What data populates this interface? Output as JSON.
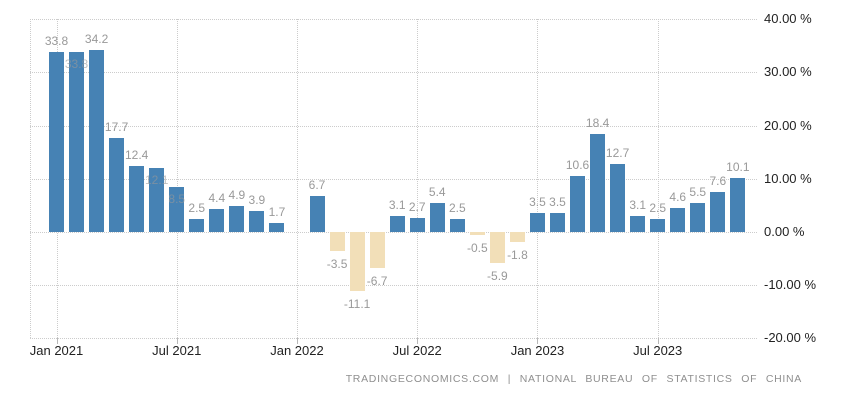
{
  "footer": {
    "credit": "TRADINGECONOMICS.COM | NATIONAL BUREAU OF STATISTICS OF CHINA"
  },
  "chart_data": {
    "type": "bar",
    "unit": "%",
    "ylim": [
      -20,
      40
    ],
    "grid": "dotted",
    "legend_position": "none",
    "colors": {
      "positive": "#4682B4",
      "negative": "#F2DFB8",
      "grid": "#CCCCCC",
      "value_label": "#999999",
      "axis_label": "#222222"
    },
    "y_axis": {
      "side": "right",
      "ticks": [
        {
          "value": 40,
          "label": "40.00 %"
        },
        {
          "value": 30,
          "label": "30.00 %"
        },
        {
          "value": 20,
          "label": "20.00 %"
        },
        {
          "value": 10,
          "label": "10.00 %"
        },
        {
          "value": 0,
          "label": "0.00 %"
        },
        {
          "value": -10,
          "label": "-10.00 %"
        },
        {
          "value": -20,
          "label": "-20.00 %"
        }
      ]
    },
    "x_axis": {
      "ticks": [
        {
          "label": "Jan 2021",
          "month_index": 0
        },
        {
          "label": "Jul 2021",
          "month_index": 6
        },
        {
          "label": "Jan 2022",
          "month_index": 12
        },
        {
          "label": "Jul 2022",
          "month_index": 18
        },
        {
          "label": "Jan 2023",
          "month_index": 24
        },
        {
          "label": "Jul 2023",
          "month_index": 30
        }
      ]
    },
    "points": [
      {
        "month": "Jan 2021",
        "month_index": 0,
        "value": 33.8,
        "label": "33.8",
        "label_pos": "above"
      },
      {
        "month": "Feb 2021",
        "month_index": 1,
        "value": 33.8,
        "label": "33.8",
        "label_pos": "on"
      },
      {
        "month": "Mar 2021",
        "month_index": 2,
        "value": 34.2,
        "label": "34.2",
        "label_pos": "above"
      },
      {
        "month": "Apr 2021",
        "month_index": 3,
        "value": 17.7,
        "label": "17.7",
        "label_pos": "above"
      },
      {
        "month": "May 2021",
        "month_index": 4,
        "value": 12.4,
        "label": "12.4",
        "label_pos": "above"
      },
      {
        "month": "Jun 2021",
        "month_index": 5,
        "value": 12.1,
        "label": "12.1",
        "label_pos": "on"
      },
      {
        "month": "Jul 2021",
        "month_index": 6,
        "value": 8.5,
        "label": "8.5",
        "label_pos": "on"
      },
      {
        "month": "Aug 2021",
        "month_index": 7,
        "value": 2.5,
        "label": "2.5",
        "label_pos": "above"
      },
      {
        "month": "Sep 2021",
        "month_index": 8,
        "value": 4.4,
        "label": "4.4",
        "label_pos": "above"
      },
      {
        "month": "Oct 2021",
        "month_index": 9,
        "value": 4.9,
        "label": "4.9",
        "label_pos": "above"
      },
      {
        "month": "Nov 2021",
        "month_index": 10,
        "value": 3.9,
        "label": "3.9",
        "label_pos": "above"
      },
      {
        "month": "Dec 2021",
        "month_index": 11,
        "value": 1.7,
        "label": "1.7",
        "label_pos": "above"
      },
      {
        "month": "Feb 2022",
        "month_index": 13,
        "value": 6.7,
        "label": "6.7",
        "label_pos": "above"
      },
      {
        "month": "Mar 2022",
        "month_index": 14,
        "value": -3.5,
        "label": "-3.5",
        "label_pos": "below"
      },
      {
        "month": "Apr 2022",
        "month_index": 15,
        "value": -11.1,
        "label": "-11.1",
        "label_pos": "below"
      },
      {
        "month": "May 2022",
        "month_index": 16,
        "value": -6.7,
        "label": "-6.7",
        "label_pos": "below"
      },
      {
        "month": "Jun 2022",
        "month_index": 17,
        "value": 3.1,
        "label": "3.1",
        "label_pos": "above"
      },
      {
        "month": "Jul 2022",
        "month_index": 18,
        "value": 2.7,
        "label": "2.7",
        "label_pos": "above"
      },
      {
        "month": "Aug 2022",
        "month_index": 19,
        "value": 5.4,
        "label": "5.4",
        "label_pos": "above"
      },
      {
        "month": "Sep 2022",
        "month_index": 20,
        "value": 2.5,
        "label": "2.5",
        "label_pos": "above"
      },
      {
        "month": "Oct 2022",
        "month_index": 21,
        "value": -0.5,
        "label": "-0.5",
        "label_pos": "below"
      },
      {
        "month": "Nov 2022",
        "month_index": 22,
        "value": -5.9,
        "label": "-5.9",
        "label_pos": "below"
      },
      {
        "month": "Dec 2022",
        "month_index": 23,
        "value": -1.8,
        "label": "-1.8",
        "label_pos": "below"
      },
      {
        "month": "Jan 2023",
        "month_index": 24,
        "value": 3.5,
        "label": "3.5",
        "label_pos": "above"
      },
      {
        "month": "Feb 2023",
        "month_index": 25,
        "value": 3.5,
        "label": "3.5",
        "label_pos": "above"
      },
      {
        "month": "Mar 2023",
        "month_index": 26,
        "value": 10.6,
        "label": "10.6",
        "label_pos": "above"
      },
      {
        "month": "Apr 2023",
        "month_index": 27,
        "value": 18.4,
        "label": "18.4",
        "label_pos": "above"
      },
      {
        "month": "May 2023",
        "month_index": 28,
        "value": 12.7,
        "label": "12.7",
        "label_pos": "above"
      },
      {
        "month": "Jun 2023",
        "month_index": 29,
        "value": 3.1,
        "label": "3.1",
        "label_pos": "above"
      },
      {
        "month": "Jul 2023",
        "month_index": 30,
        "value": 2.5,
        "label": "2.5",
        "label_pos": "above"
      },
      {
        "month": "Aug 2023",
        "month_index": 31,
        "value": 4.6,
        "label": "4.6",
        "label_pos": "above"
      },
      {
        "month": "Sep 2023",
        "month_index": 32,
        "value": 5.5,
        "label": "5.5",
        "label_pos": "above"
      },
      {
        "month": "Oct 2023",
        "month_index": 33,
        "value": 7.6,
        "label": "7.6",
        "label_pos": "above"
      },
      {
        "month": "Nov 2023",
        "month_index": 34,
        "value": 10.1,
        "label": "10.1",
        "label_pos": "above"
      }
    ]
  }
}
